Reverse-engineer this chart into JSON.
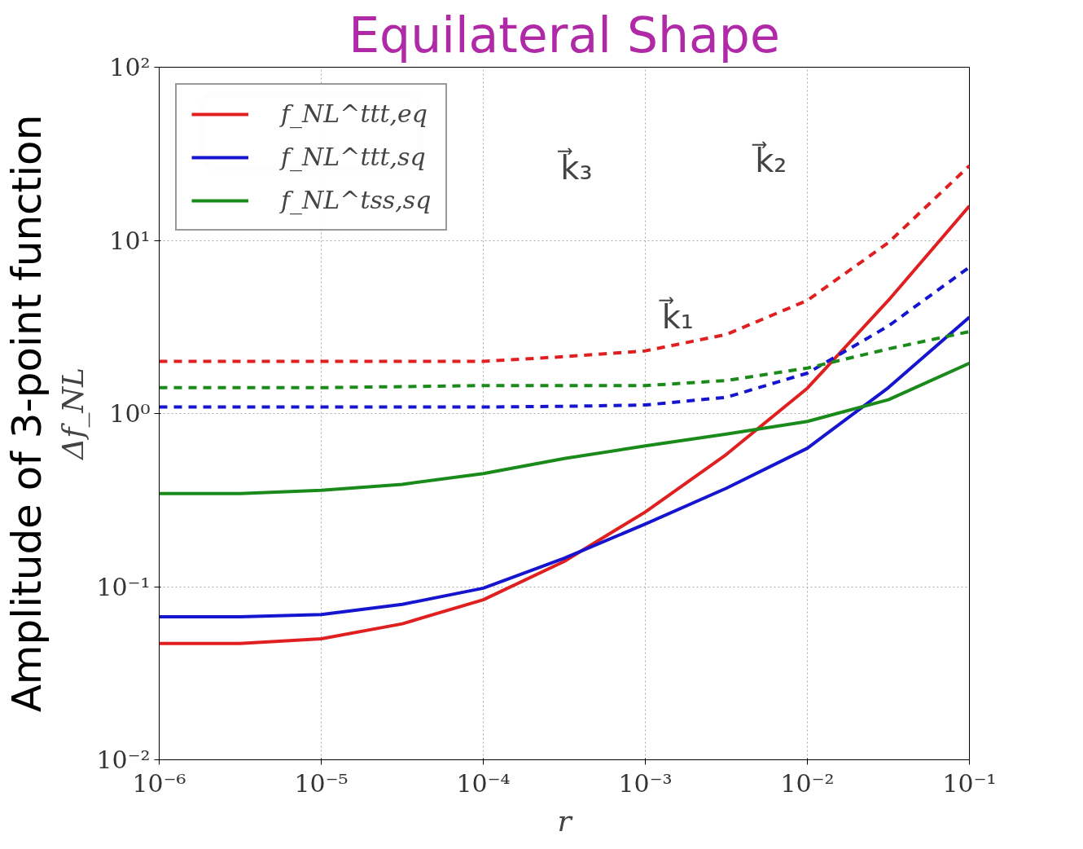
{
  "chart_data": {
    "type": "line",
    "title": "Equilateral Shape",
    "xlabel": "r",
    "ylabel": "Δf_NL",
    "log": "xy",
    "grid": true,
    "legend": "top left",
    "x": [
      1e-06,
      3.16e-06,
      1e-05,
      3.16e-05,
      0.0001,
      0.000316,
      0.001,
      0.00316,
      0.01,
      0.0316,
      0.1
    ],
    "xlim": [
      1e-06,
      0.1
    ],
    "ylim": [
      0.01,
      100.0
    ],
    "xticks": [
      {
        "value": 1e-06,
        "label": "10⁻⁶"
      },
      {
        "value": 1e-05,
        "label": "10⁻⁵"
      },
      {
        "value": 0.0001,
        "label": "10⁻⁴"
      },
      {
        "value": 0.001,
        "label": "10⁻³"
      },
      {
        "value": 0.01,
        "label": "10⁻²"
      },
      {
        "value": 0.1,
        "label": "10⁻¹"
      }
    ],
    "yticks": [
      {
        "value": 0.01,
        "label": "10⁻²"
      },
      {
        "value": 0.1,
        "label": "10⁻¹"
      },
      {
        "value": 1,
        "label": "10⁰"
      },
      {
        "value": 10,
        "label": "10¹"
      },
      {
        "value": 100,
        "label": "10²"
      }
    ],
    "series": [
      {
        "name": "f_NL^ttt,eq",
        "color": "#e02020",
        "line_style": "solid",
        "values": [
          0.047,
          0.047,
          0.05,
          0.061,
          0.084,
          0.14,
          0.27,
          0.58,
          1.4,
          4.5,
          15.8
        ]
      },
      {
        "name": "f_NL^ttt,sq",
        "color": "#1515d0",
        "line_style": "solid",
        "values": [
          0.067,
          0.067,
          0.069,
          0.079,
          0.098,
          0.146,
          0.23,
          0.37,
          0.63,
          1.41,
          3.6
        ]
      },
      {
        "name": "f_NL^tss,sq",
        "color": "#1a8a1a",
        "line_style": "solid",
        "values": [
          0.345,
          0.345,
          0.36,
          0.39,
          0.45,
          0.55,
          0.65,
          0.76,
          0.9,
          1.2,
          1.95
        ]
      },
      {
        "color": "#e02020",
        "line_style": "dashed",
        "values": [
          2.0,
          2.0,
          2.0,
          2.0,
          2.0,
          2.13,
          2.3,
          2.86,
          4.5,
          9.7,
          27
        ]
      },
      {
        "color": "#1515d0",
        "line_style": "dashed",
        "values": [
          1.09,
          1.09,
          1.09,
          1.09,
          1.09,
          1.1,
          1.12,
          1.24,
          1.71,
          3.2,
          7.0
        ]
      },
      {
        "color": "#1a8a1a",
        "line_style": "dashed",
        "values": [
          1.41,
          1.41,
          1.41,
          1.43,
          1.45,
          1.45,
          1.45,
          1.55,
          1.83,
          2.36,
          2.97
        ]
      }
    ],
    "annotations": [
      "Amplitude of 3-point function",
      "k⃗₁",
      "k⃗₂",
      "k⃗₃"
    ]
  }
}
